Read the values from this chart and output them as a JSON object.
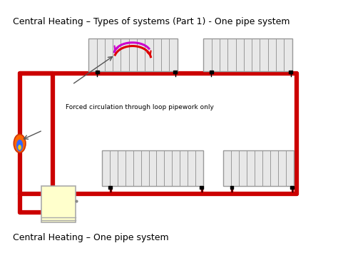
{
  "title": "Central Heating – Types of systems (Part 1) - One pipe system",
  "subtitle": "Central Heating – One pipe system",
  "annotation": "Forced circulation through loop pipework only",
  "bg_color": "#ffffff",
  "pipe_color": "#cc0000",
  "radiator_color": "#e8e8e8",
  "radiator_edge": "#999999",
  "boiler_color": "#ffffcc",
  "pipe_lw": 4.5,
  "title_fontsize": 9,
  "subtitle_fontsize": 9,
  "annot_fontsize": 6.5
}
